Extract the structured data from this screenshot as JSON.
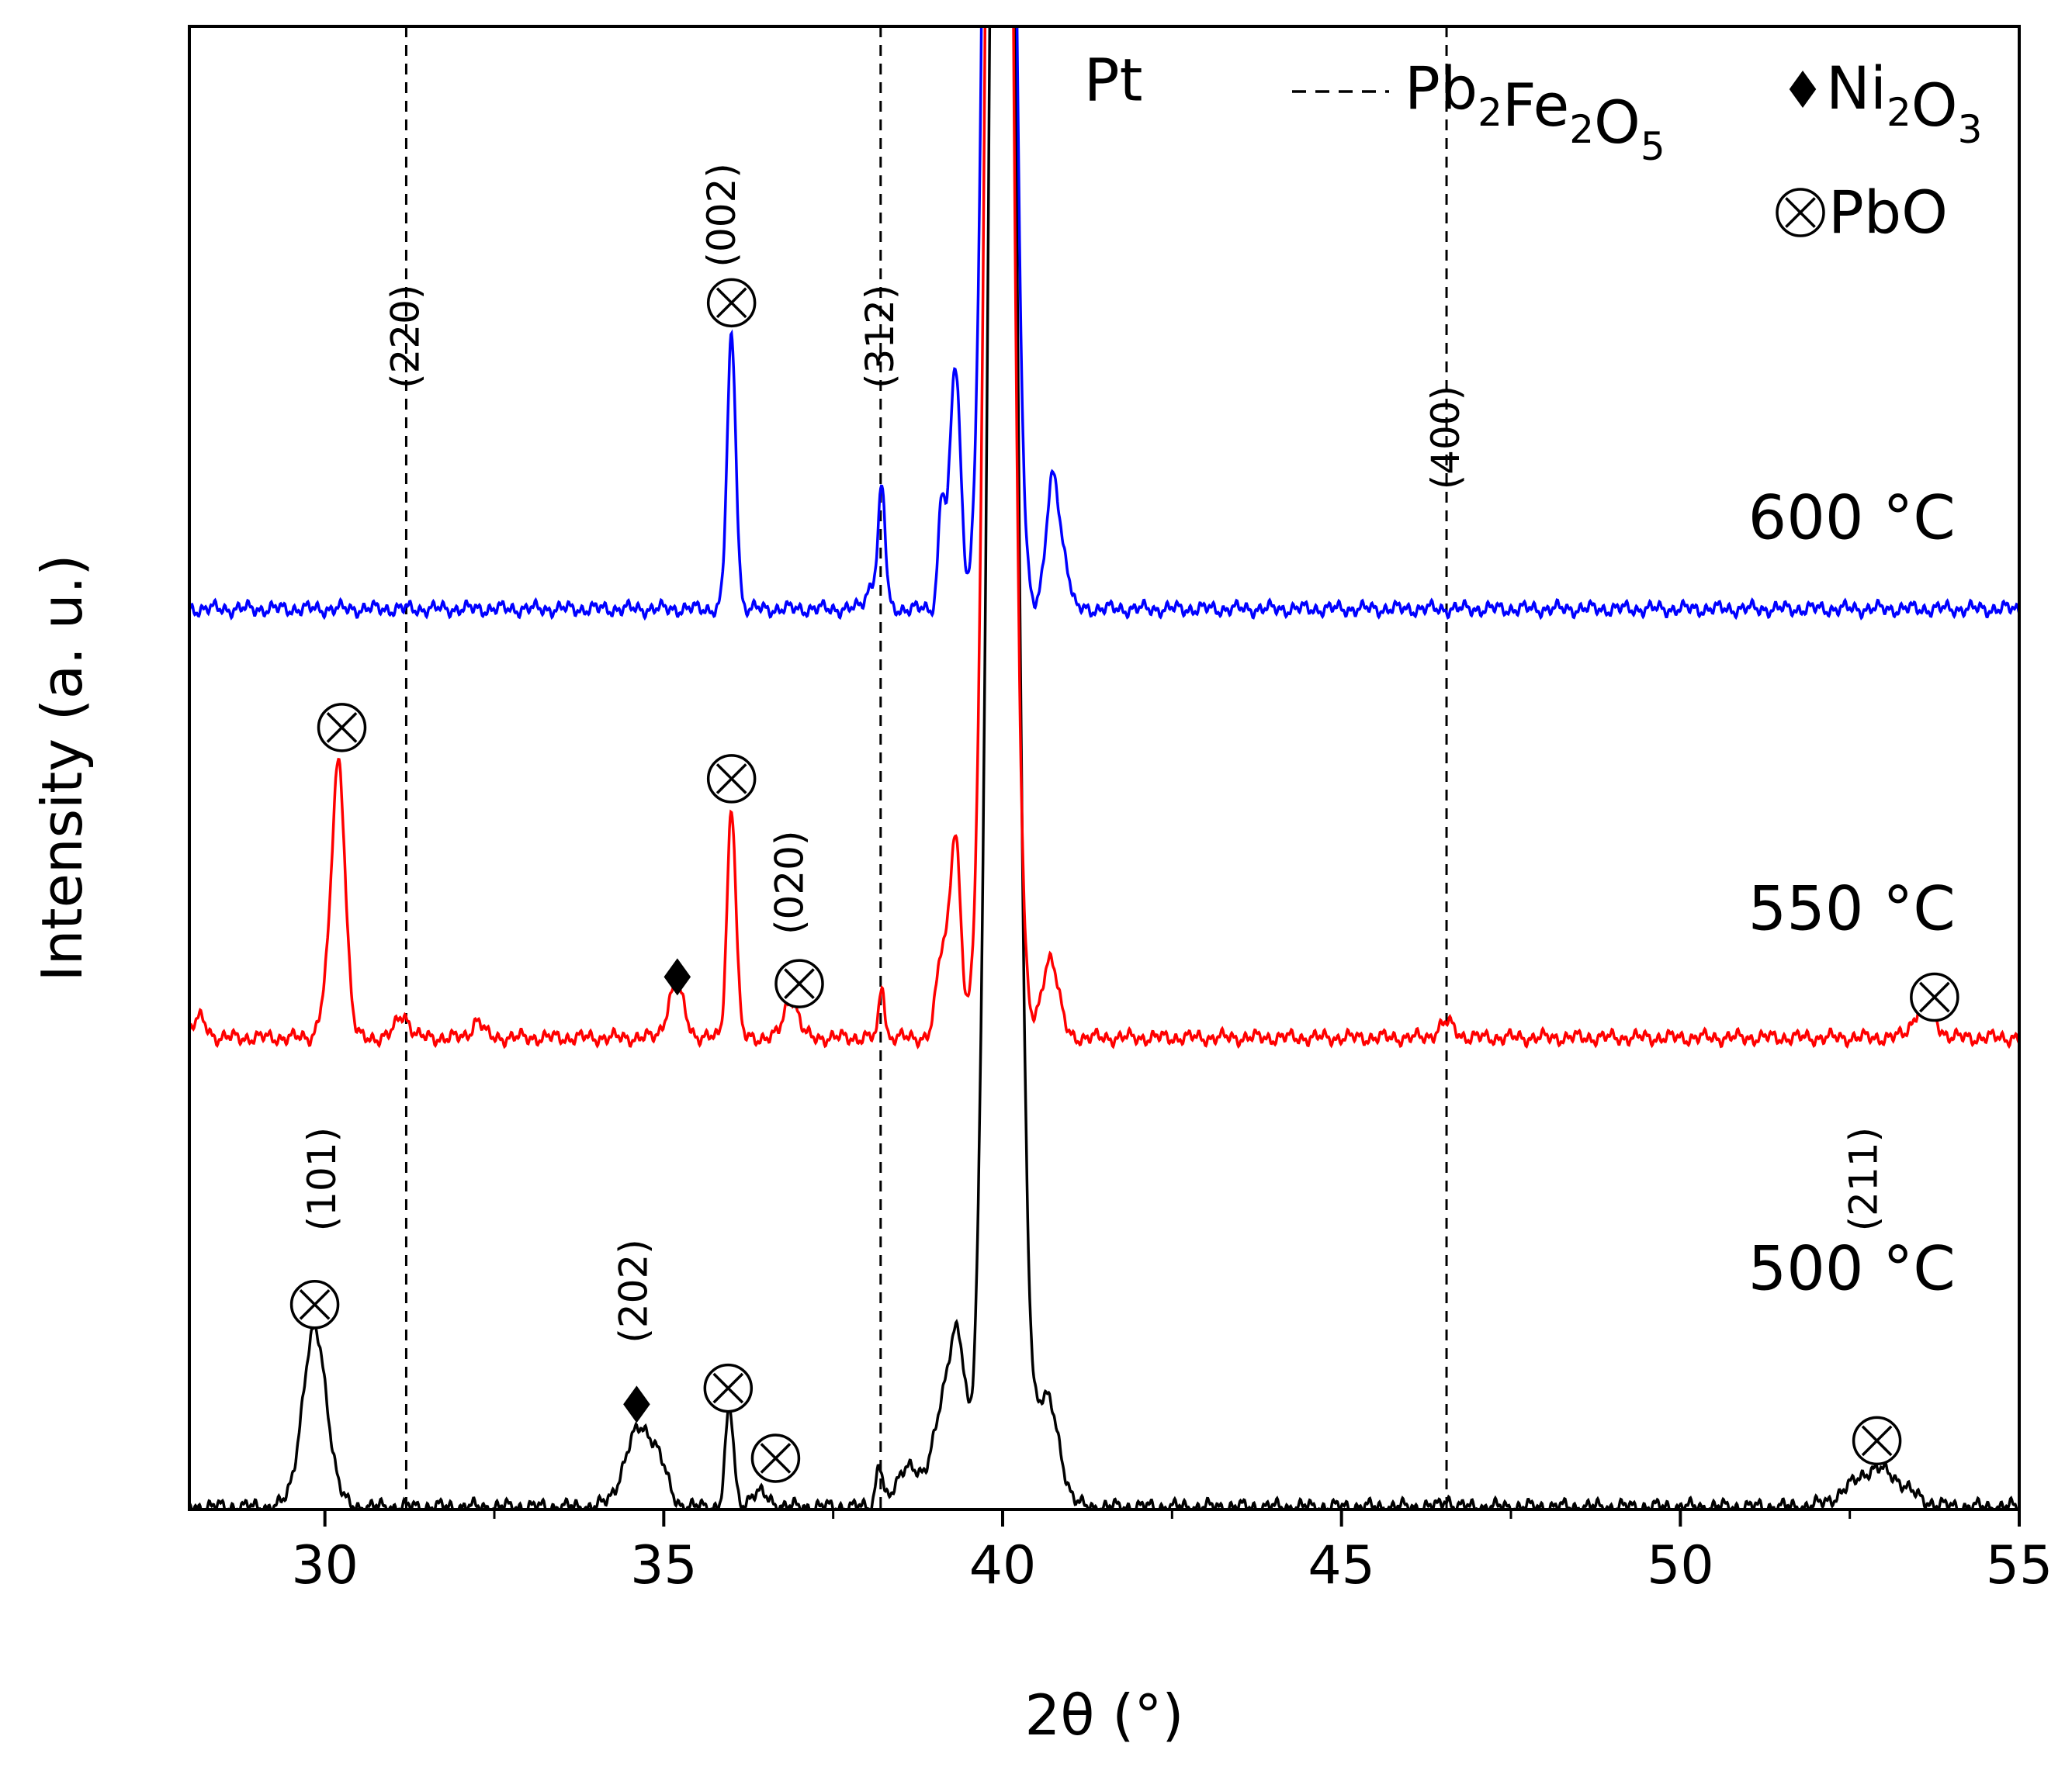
{
  "chart_data": {
    "type": "line",
    "title": "",
    "xlabel": "2θ (°)",
    "ylabel": "Intensity (a. u.)",
    "xlim": [
      28,
      55
    ],
    "ylim": [
      0,
      110
    ],
    "xticks": [
      30,
      35,
      40,
      45,
      50,
      55
    ],
    "xtick_labels": [
      "30",
      "35",
      "40",
      "45",
      "50",
      "55"
    ],
    "minor_xticks": [
      27.5,
      32.5,
      37.5,
      42.5,
      47.5,
      52.5
    ],
    "series": [
      {
        "name": "500 °C",
        "label": "500 °C",
        "color": "#000000",
        "label_x": 53.6,
        "label_y": 16.3,
        "baseline": 0.2,
        "peaks": [
          {
            "x": 29.85,
            "h": 13.0,
            "w": 0.18
          },
          {
            "x": 34.65,
            "h": 5.8,
            "w": 0.22
          },
          {
            "x": 34.95,
            "h": 1.5,
            "w": 0.12
          },
          {
            "x": 35.97,
            "h": 7.3,
            "w": 0.06
          },
          {
            "x": 36.4,
            "h": 1.0,
            "w": 0.15
          },
          {
            "x": 38.18,
            "h": 3.2,
            "w": 0.05
          },
          {
            "x": 38.6,
            "h": 3.2,
            "w": 0.15
          },
          {
            "x": 39.1,
            "h": 7.0,
            "w": 0.15
          },
          {
            "x": 39.35,
            "h": 11.0,
            "w": 0.12
          },
          {
            "x": 40.0,
            "h": 205.0,
            "w": 0.17
          },
          {
            "x": 40.65,
            "h": 8.0,
            "w": 0.18
          },
          {
            "x": 52.9,
            "h": 2.8,
            "w": 0.38
          },
          {
            "x": 46.55,
            "h": 0.6,
            "w": 0.06
          }
        ]
      },
      {
        "name": "550 °C",
        "label": "550 °C",
        "color": "#ff0000",
        "label_x": 53.6,
        "label_y": 43.0,
        "baseline": 35.0,
        "peaks": [
          {
            "x": 28.15,
            "h": 1.4,
            "w": 0.1
          },
          {
            "x": 30.2,
            "h": 20.5,
            "w": 0.1
          },
          {
            "x": 29.98,
            "h": 1.8,
            "w": 0.08
          },
          {
            "x": 31.15,
            "h": 1.7,
            "w": 0.1
          },
          {
            "x": 32.25,
            "h": 1.3,
            "w": 0.08
          },
          {
            "x": 35.18,
            "h": 3.8,
            "w": 0.12
          },
          {
            "x": 36.0,
            "h": 17.0,
            "w": 0.065
          },
          {
            "x": 36.88,
            "h": 3.0,
            "w": 0.1
          },
          {
            "x": 38.22,
            "h": 4.0,
            "w": 0.04
          },
          {
            "x": 39.1,
            "h": 6.0,
            "w": 0.08
          },
          {
            "x": 39.3,
            "h": 15.0,
            "w": 0.08
          },
          {
            "x": 39.95,
            "h": 200.0,
            "w": 0.15
          },
          {
            "x": 40.7,
            "h": 6.0,
            "w": 0.12
          },
          {
            "x": 46.55,
            "h": 1.1,
            "w": 0.12
          },
          {
            "x": 53.6,
            "h": 2.5,
            "w": 0.15
          }
        ]
      },
      {
        "name": "600 °C",
        "label": "600 °C",
        "color": "#0000ff",
        "label_x": 53.6,
        "label_y": 72.0,
        "baseline": 66.8,
        "peaks": [
          {
            "x": 36.0,
            "h": 20.0,
            "w": 0.065
          },
          {
            "x": 38.22,
            "h": 8.0,
            "w": 0.05
          },
          {
            "x": 38.1,
            "h": 2.0,
            "w": 0.1
          },
          {
            "x": 39.1,
            "h": 8.0,
            "w": 0.05
          },
          {
            "x": 39.3,
            "h": 18.0,
            "w": 0.08
          },
          {
            "x": 39.95,
            "h": 200.0,
            "w": 0.15
          },
          {
            "x": 40.75,
            "h": 10.0,
            "w": 0.1
          },
          {
            "x": 40.95,
            "h": 2.0,
            "w": 0.06
          }
        ]
      }
    ],
    "reference_lines": {
      "name": "Pb2Fe2O5",
      "x": [
        31.2,
        38.2,
        46.55
      ],
      "labels": [
        "(220)",
        "(312)",
        "(400)"
      ],
      "label_y": [
        87.0,
        87.0,
        79.5
      ]
    },
    "annotations": [
      {
        "text": "(101)",
        "x": 30.15,
        "y": 24.5
      },
      {
        "text": "(202)",
        "x": 34.75,
        "y": 16.2
      },
      {
        "text": "(211)",
        "x": 52.9,
        "y": 24.5
      },
      {
        "text": "(002)",
        "x": 36.05,
        "y": 96.0
      },
      {
        "text": "(020)",
        "x": 37.05,
        "y": 46.5
      }
    ],
    "pbo_markers": [
      {
        "x": 29.85,
        "y": 15.2
      },
      {
        "x": 35.95,
        "y": 9.0
      },
      {
        "x": 36.65,
        "y": 3.8
      },
      {
        "x": 52.9,
        "y": 5.1
      },
      {
        "x": 30.25,
        "y": 58.0
      },
      {
        "x": 36.0,
        "y": 54.2
      },
      {
        "x": 37.0,
        "y": 39.0
      },
      {
        "x": 53.75,
        "y": 38.0
      },
      {
        "x": 36.0,
        "y": 89.5
      }
    ],
    "ni2o3_markers": [
      {
        "x": 34.6,
        "y": 7.8
      },
      {
        "x": 35.2,
        "y": 39.5
      }
    ],
    "pt_label": {
      "text": "Pt",
      "x": 41.2,
      "y": 104.5
    },
    "legend": {
      "position": "top-right",
      "entries": [
        {
          "symbol": "dashed-line",
          "text": "Pb2Fe2O5"
        },
        {
          "symbol": "filled-diamond",
          "text": "Ni2O3"
        },
        {
          "symbol": "circled-times",
          "text": "PbO"
        }
      ]
    }
  }
}
